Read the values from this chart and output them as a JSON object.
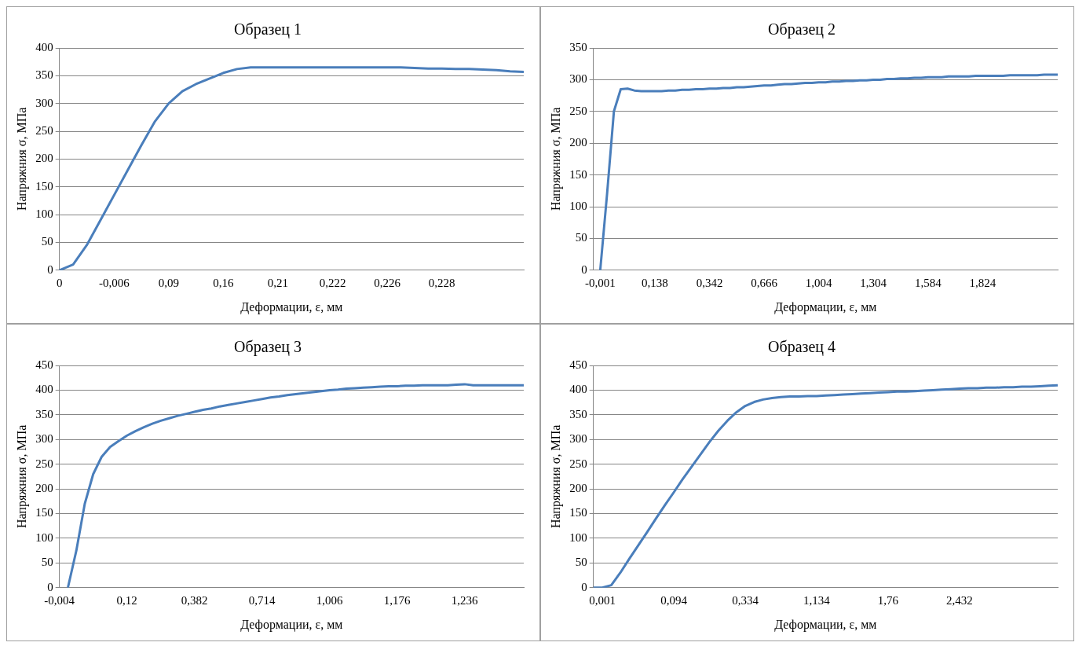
{
  "chart_data": [
    {
      "type": "line",
      "title": "Образец 1",
      "xlabel": "Деформации, ε, мм",
      "ylabel": "Напряжния σ, МПа",
      "grid": "y",
      "marker": "none",
      "line_style": "solid",
      "categories": [
        "0",
        null,
        null,
        null,
        "-0,006",
        null,
        null,
        null,
        "0,09",
        null,
        null,
        null,
        "0,16",
        null,
        null,
        null,
        "0,21",
        null,
        null,
        null,
        "0,222",
        null,
        null,
        null,
        "0,226",
        null,
        null,
        null,
        "0,228",
        null,
        null,
        null,
        null,
        null,
        null
      ],
      "series": [
        {
          "color": "#4a7ebb",
          "values": [
            0,
            10,
            45,
            90,
            135,
            180,
            225,
            268,
            300,
            322,
            335,
            345,
            355,
            362,
            365,
            365,
            365,
            365,
            365,
            365,
            365,
            365,
            365,
            365,
            365,
            365,
            364,
            363,
            363,
            362,
            362,
            361,
            360,
            358,
            357
          ]
        }
      ],
      "ylim": [
        0,
        400
      ],
      "yticks": [
        0,
        50,
        100,
        150,
        200,
        250,
        300,
        350,
        400
      ]
    },
    {
      "type": "line",
      "title": "Образец 2",
      "xlabel": "Деформации, ε, мм",
      "ylabel": "Напряжния σ, МПа",
      "grid": "y",
      "marker": "none",
      "line_style": "solid",
      "categories": [
        null,
        "-0,001",
        null,
        null,
        null,
        null,
        null,
        null,
        null,
        "0,138",
        null,
        null,
        null,
        null,
        null,
        null,
        null,
        "0,342",
        null,
        null,
        null,
        null,
        null,
        null,
        null,
        "0,666",
        null,
        null,
        null,
        null,
        null,
        null,
        null,
        "1,004",
        null,
        null,
        null,
        null,
        null,
        null,
        null,
        "1,304",
        null,
        null,
        null,
        null,
        null,
        null,
        null,
        "1,584",
        null,
        null,
        null,
        null,
        null,
        null,
        null,
        "1,824",
        null,
        null,
        null,
        null,
        null,
        null,
        null,
        null,
        null,
        null,
        null
      ],
      "series": [
        {
          "color": "#4a7ebb",
          "values": [
            null,
            0,
            120,
            250,
            285,
            286,
            283,
            282,
            282,
            282,
            282,
            283,
            283,
            284,
            284,
            285,
            285,
            286,
            286,
            287,
            287,
            288,
            288,
            289,
            290,
            291,
            291,
            292,
            293,
            293,
            294,
            295,
            295,
            296,
            296,
            297,
            297,
            298,
            298,
            299,
            299,
            300,
            300,
            301,
            301,
            302,
            302,
            303,
            303,
            304,
            304,
            304,
            305,
            305,
            305,
            305,
            306,
            306,
            306,
            306,
            306,
            307,
            307,
            307,
            307,
            307,
            308,
            308,
            308
          ]
        }
      ],
      "ylim": [
        0,
        350
      ],
      "yticks": [
        0,
        50,
        100,
        150,
        200,
        250,
        300,
        350
      ]
    },
    {
      "type": "line",
      "title": "Образец 3",
      "xlabel": "Деформации, ε, мм",
      "ylabel": "Напряжния σ, МПа",
      "grid": "y",
      "marker": "none",
      "line_style": "solid",
      "categories": [
        "-0,004",
        null,
        null,
        null,
        null,
        null,
        null,
        null,
        "0,12",
        null,
        null,
        null,
        null,
        null,
        null,
        null,
        "0,382",
        null,
        null,
        null,
        null,
        null,
        null,
        null,
        "0,714",
        null,
        null,
        null,
        null,
        null,
        null,
        null,
        "1,006",
        null,
        null,
        null,
        null,
        null,
        null,
        null,
        "1,176",
        null,
        null,
        null,
        null,
        null,
        null,
        null,
        "1,236",
        null,
        null,
        null,
        null,
        null,
        null,
        null
      ],
      "series": [
        {
          "color": "#4a7ebb",
          "values": [
            null,
            0,
            75,
            170,
            230,
            265,
            285,
            297,
            308,
            317,
            325,
            332,
            338,
            343,
            348,
            352,
            356,
            360,
            363,
            367,
            370,
            373,
            376,
            379,
            382,
            385,
            387,
            390,
            392,
            394,
            396,
            398,
            400,
            401,
            403,
            404,
            405,
            406,
            407,
            408,
            408,
            409,
            409,
            410,
            410,
            410,
            410,
            411,
            412,
            410,
            410,
            410,
            410,
            410,
            410,
            410
          ]
        }
      ],
      "ylim": [
        0,
        450
      ],
      "yticks": [
        0,
        50,
        100,
        150,
        200,
        250,
        300,
        350,
        400,
        450
      ]
    },
    {
      "type": "line",
      "title": "Образец 4",
      "xlabel": "Деформации, ε, мм",
      "ylabel": "Напряжния σ, МПа",
      "grid": "y",
      "marker": "none",
      "line_style": "solid",
      "categories": [
        null,
        "0,001",
        null,
        null,
        null,
        null,
        null,
        null,
        null,
        "0,094",
        null,
        null,
        null,
        null,
        null,
        null,
        null,
        "0,334",
        null,
        null,
        null,
        null,
        null,
        null,
        null,
        "1,134",
        null,
        null,
        null,
        null,
        null,
        null,
        null,
        "1,76",
        null,
        null,
        null,
        null,
        null,
        null,
        null,
        "2,432",
        null,
        null,
        null,
        null,
        null,
        null,
        null,
        null,
        null,
        null,
        null
      ],
      "series": [
        {
          "color": "#4a7ebb",
          "values": [
            0,
            0,
            5,
            30,
            58,
            85,
            112,
            140,
            167,
            193,
            220,
            245,
            270,
            295,
            318,
            338,
            355,
            368,
            376,
            381,
            384,
            386,
            387,
            387,
            388,
            388,
            389,
            390,
            391,
            392,
            393,
            394,
            395,
            396,
            397,
            397,
            398,
            399,
            400,
            401,
            402,
            403,
            404,
            404,
            405,
            405,
            406,
            406,
            407,
            407,
            408,
            409,
            410
          ]
        }
      ],
      "ylim": [
        0,
        450
      ],
      "yticks": [
        0,
        50,
        100,
        150,
        200,
        250,
        300,
        350,
        400,
        450
      ]
    }
  ]
}
